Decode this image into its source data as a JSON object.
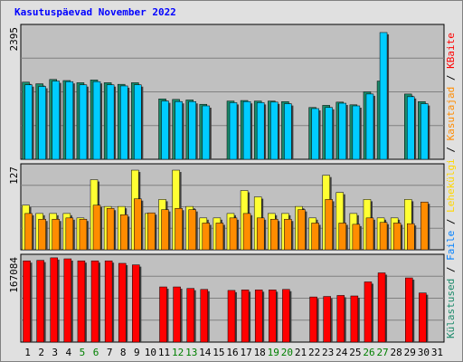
{
  "chart_data": {
    "type": "bar",
    "title": "Kasutuspäevad November 2022",
    "categories": [
      "1",
      "2",
      "3",
      "4",
      "5",
      "6",
      "7",
      "8",
      "9",
      "10",
      "11",
      "12",
      "13",
      "14",
      "15",
      "16",
      "17",
      "18",
      "19",
      "20",
      "21",
      "22",
      "23",
      "24",
      "25",
      "26",
      "27",
      "28",
      "29",
      "30",
      "31"
    ],
    "weekend_days": [
      "5",
      "6",
      "12",
      "13",
      "19",
      "20",
      "26",
      "27"
    ],
    "panels": [
      {
        "id": "top",
        "tick_label": "2395",
        "ylim": [
          0,
          2500
        ],
        "series": [
          {
            "name": "Külastused",
            "color": "#1a8a6a",
            "values": [
              1430,
              1400,
              1480,
              1460,
              1420,
              1470,
              1420,
              1390,
              1420,
              null,
              1120,
              1110,
              1100,
              1020,
              null,
              1080,
              1090,
              1080,
              1080,
              1070,
              null,
              960,
              1000,
              1060,
              1010,
              1250,
              1450,
              null,
              1210,
              1070,
              null
            ]
          },
          {
            "name": "Faile",
            "color": "#00ccff",
            "values": [
              1380,
              1350,
              1450,
              1440,
              1380,
              1440,
              1380,
              1360,
              1380,
              null,
              1080,
              1070,
              1070,
              990,
              null,
              1050,
              1070,
              1050,
              1060,
              1030,
              null,
              940,
              960,
              1040,
              990,
              1210,
              2350,
              null,
              1160,
              1030,
              null
            ]
          }
        ]
      },
      {
        "id": "middle",
        "tick_label": "127",
        "ylim": [
          0,
          135
        ],
        "series": [
          {
            "name": "Lehekülgi",
            "color": "#ffff33",
            "values": [
              70,
              57,
              57,
              57,
              50,
              110,
              68,
              68,
              125,
              57,
              79,
              125,
              68,
              50,
              50,
              57,
              93,
              83,
              57,
              57,
              68,
              50,
              117,
              90,
              57,
              79,
              50,
              50,
              79,
              null,
              null
            ]
          },
          {
            "name": "Kasutajad",
            "color": "#ff8c00",
            "values": [
              57,
              48,
              48,
              50,
              48,
              70,
              65,
              55,
              80,
              58,
              63,
              65,
              63,
              42,
              42,
              50,
              57,
              50,
              48,
              48,
              63,
              42,
              79,
              42,
              40,
              50,
              43,
              42,
              41,
              75,
              null
            ]
          }
        ]
      },
      {
        "id": "bottom",
        "tick_label": "167084",
        "ylim": [
          0,
          175000
        ],
        "series": [
          {
            "name": "KBaite",
            "color": "#ff0000",
            "values": [
              162000,
              163000,
              168000,
              166000,
              162000,
              162000,
              162000,
              157000,
              154000,
              null,
              110000,
              110000,
              107000,
              105000,
              null,
              103000,
              104000,
              104000,
              104000,
              105000,
              null,
              90000,
              91000,
              93000,
              92000,
              120000,
              138000,
              null,
              128000,
              98000,
              null
            ]
          }
        ]
      }
    ],
    "legend_right": [
      {
        "text": "Külastused",
        "color": "#1a8a6a"
      },
      {
        "text": "Faile",
        "color": "#0080ff"
      },
      {
        "text": "Lehekülgi",
        "color": "#ffd700"
      },
      {
        "text": "Kasutajad",
        "color": "#ff8c00"
      },
      {
        "text": "KBaite",
        "color": "#ff0000"
      }
    ],
    "legend_sep": "/",
    "colors": {
      "frame_bg": "#e0e0e0",
      "plot_bg": "#c0c0c0",
      "gridline": "#808080",
      "weekday_label": "#000000",
      "weekend_label": "#008000",
      "title": "#0000ff"
    }
  }
}
